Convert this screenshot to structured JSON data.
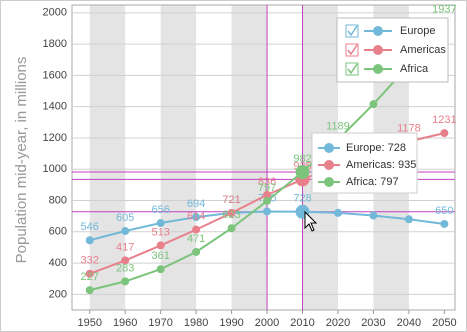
{
  "chart_data": {
    "type": "line",
    "y_axis_label": "Population mid-year, in millions",
    "x": [
      1950,
      1960,
      1970,
      1980,
      1990,
      2000,
      2010,
      2020,
      2030,
      2040,
      2050
    ],
    "series": [
      {
        "name": "Europe",
        "color": "#72b8d8",
        "values": [
          546,
          605,
          656,
          694,
          721,
          730,
          728,
          721,
          704,
          680,
          650
        ],
        "value_labels": [
          "546",
          "605",
          "656",
          "694",
          "721",
          "730",
          "728",
          null,
          null,
          null,
          "650"
        ]
      },
      {
        "name": "Americas",
        "color": "#e8808c",
        "values": [
          332,
          417,
          513,
          614,
          721,
          836,
          935,
          1027,
          1110,
          1178,
          1231
        ],
        "value_labels": [
          "332",
          "417",
          "513",
          "614",
          "721",
          "836",
          "935",
          null,
          "1110",
          "1178",
          "1231"
        ]
      },
      {
        "name": "Africa",
        "color": "#7cc47c",
        "values": [
          227,
          283,
          361,
          471,
          623,
          797,
          982,
          1189,
          1416,
          1665,
          1937
        ],
        "value_labels": [
          "227",
          "283",
          "361",
          "471",
          "623",
          "797",
          "982",
          "1189",
          null,
          null,
          "1937"
        ]
      }
    ],
    "xlim": [
      1945,
      2053
    ],
    "ylim": [
      100,
      2050
    ],
    "xticks": [
      1950,
      1960,
      1970,
      1980,
      1990,
      2000,
      2010,
      2020,
      2030,
      2040,
      2050
    ],
    "yticks": [
      200,
      400,
      600,
      800,
      1000,
      1200,
      1400,
      1600,
      1800,
      2000
    ],
    "grid": true,
    "legend": "top-right",
    "crosshair_x": [
      2000,
      2010
    ],
    "crosshair_color": "#c040c0",
    "tooltip": [
      "Europe: 728",
      "Americas: 935",
      "Africa: 797"
    ]
  }
}
